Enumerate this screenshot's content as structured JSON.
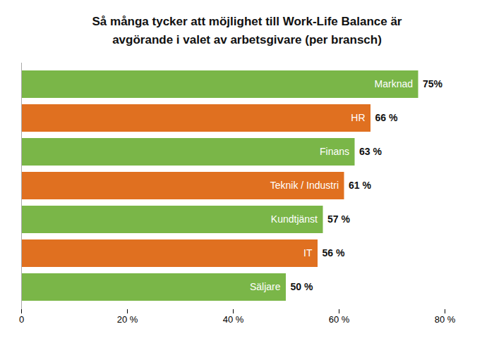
{
  "chart_data": {
    "type": "bar",
    "orientation": "horizontal",
    "title": "Så många tycker att möjlighet till Work-Life Balance är\navgörande i valet av arbetsgivare (per bransch)",
    "categories": [
      "Säljare",
      "IT",
      "Kundtjänst",
      "Teknik / Industri",
      "Finans",
      "HR",
      "Marknad"
    ],
    "values": [
      50,
      56,
      57,
      61,
      63,
      66,
      75
    ],
    "value_labels": [
      "50 %",
      "56 %",
      "57 %",
      "61 %",
      "63 %",
      "66 %",
      "75%"
    ],
    "colors": [
      "#7ab648",
      "#e07020",
      "#7ab648",
      "#e07020",
      "#7ab648",
      "#e07020",
      "#7ab648"
    ],
    "xlim": [
      0,
      80
    ],
    "xticks": [
      0,
      {
        "value": 20,
        "label": "20 %"
      },
      {
        "value": 40,
        "label": "40 %"
      },
      {
        "value": 60,
        "label": "60 %"
      },
      {
        "value": 80,
        "label": "80 %"
      }
    ],
    "grid": false,
    "data_labels": true,
    "tick_labels": "x"
  }
}
